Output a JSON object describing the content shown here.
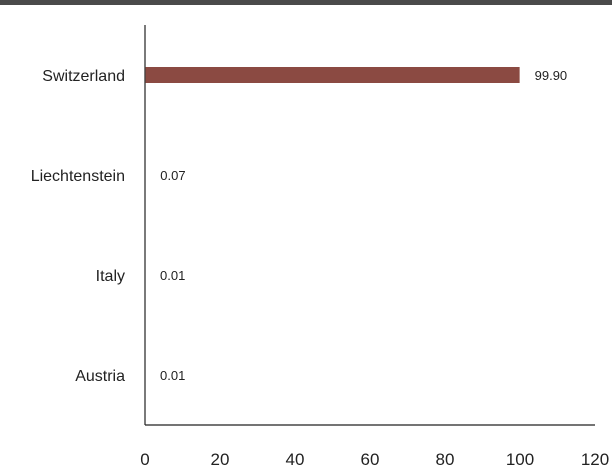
{
  "chart_data": {
    "type": "bar",
    "orientation": "horizontal",
    "categories": [
      "Switzerland",
      "Liechtenstein",
      "Italy",
      "Austria"
    ],
    "values": [
      99.9,
      0.07,
      0.01,
      0.01
    ],
    "value_labels": [
      "99.90",
      "0.07",
      "0.01",
      "0.01"
    ],
    "xlim": [
      0,
      120
    ],
    "xticks": [
      0,
      20,
      40,
      60,
      80,
      100,
      120
    ],
    "xtick_labels": [
      "0",
      "20",
      "40",
      "60",
      "80",
      "100",
      "120"
    ],
    "title": "",
    "xlabel": "",
    "ylabel": "",
    "grid": false,
    "legend": "none",
    "bar_color": "#8b4a42"
  }
}
